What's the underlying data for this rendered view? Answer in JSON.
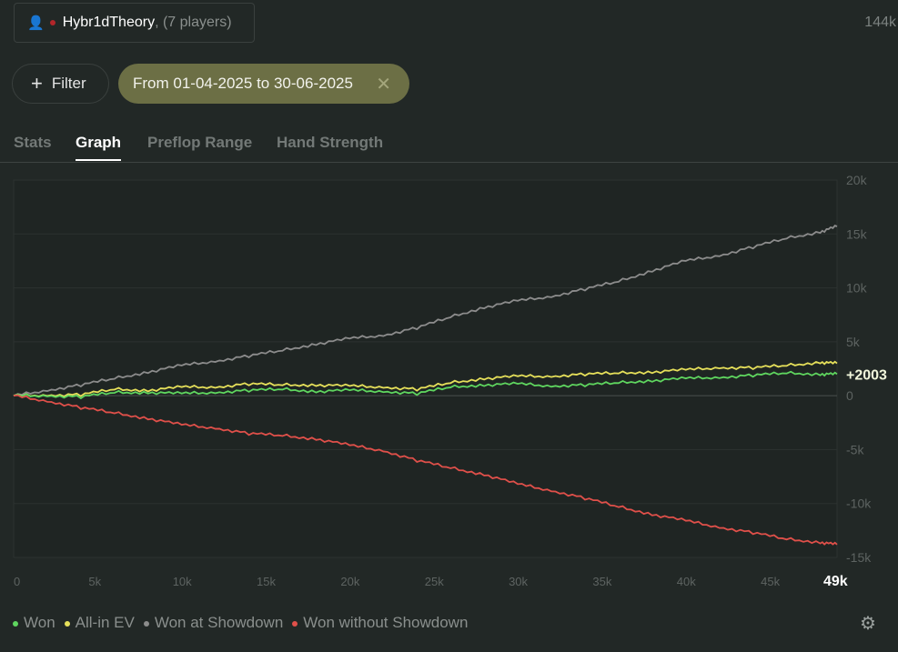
{
  "header": {
    "player_name": "Hybr1dTheory",
    "player_suffix": ", (7 players)",
    "total_hands": "144k"
  },
  "filters": {
    "add_label": "Filter",
    "date_range": "From 01-04-2025 to 30-06-2025"
  },
  "tabs": [
    {
      "label": "Stats"
    },
    {
      "label": "Graph"
    },
    {
      "label": "Preflop Range"
    },
    {
      "label": "Hand Strength"
    }
  ],
  "chart_data": {
    "type": "line",
    "xlim": [
      0,
      49000
    ],
    "ylim": [
      -15000,
      20000
    ],
    "x_ticks": [
      "0",
      "5k",
      "10k",
      "15k",
      "20k",
      "25k",
      "30k",
      "35k",
      "40k",
      "45k"
    ],
    "x_end_label": "49k",
    "y_ticks": [
      "20k",
      "15k",
      "10k",
      "5k",
      "0",
      "-5k",
      "-10k",
      "-15k"
    ],
    "end_value_label": "+2003",
    "x": [
      0,
      2000,
      4000,
      6000,
      8000,
      10000,
      12000,
      14000,
      16000,
      18000,
      20000,
      22000,
      24000,
      26000,
      28000,
      30000,
      32000,
      34000,
      36000,
      38000,
      40000,
      42000,
      44000,
      46000,
      48000,
      49000
    ],
    "series": [
      {
        "name": "Won at Showdown",
        "color": "#8c8c8c",
        "values": [
          0,
          500,
          1000,
          1600,
          2200,
          2800,
          3200,
          3700,
          4200,
          4800,
          5300,
          5600,
          6300,
          7300,
          8200,
          8800,
          9200,
          9900,
          10600,
          11600,
          12500,
          13000,
          13800,
          14600,
          15200,
          15700
        ]
      },
      {
        "name": "All-in EV",
        "color": "#e6e05a",
        "values": [
          0,
          50,
          100,
          600,
          500,
          800,
          800,
          1100,
          1000,
          1000,
          900,
          800,
          600,
          1200,
          1600,
          1800,
          1800,
          2000,
          2100,
          2200,
          2400,
          2600,
          2600,
          2800,
          3100,
          3000
        ]
      },
      {
        "name": "Won",
        "color": "#5fd65f",
        "values": [
          0,
          0,
          -100,
          300,
          300,
          200,
          300,
          500,
          600,
          400,
          500,
          400,
          200,
          800,
          1000,
          1100,
          900,
          1000,
          1200,
          1400,
          1600,
          1700,
          1900,
          2100,
          2000,
          2003
        ]
      },
      {
        "name": "Won without Showdown",
        "color": "#e0504a",
        "values": [
          0,
          -500,
          -1100,
          -1600,
          -2100,
          -2700,
          -3000,
          -3500,
          -3700,
          -4000,
          -4600,
          -5100,
          -6000,
          -6700,
          -7300,
          -8200,
          -8800,
          -9500,
          -10300,
          -11000,
          -11600,
          -12200,
          -12700,
          -13300,
          -13600,
          -13800
        ]
      }
    ]
  },
  "legend": [
    {
      "label": "Won",
      "color": "#5fd65f"
    },
    {
      "label": "All-in EV",
      "color": "#e6e05a"
    },
    {
      "label": "Won at Showdown",
      "color": "#8c8c8c"
    },
    {
      "label": "Won without Showdown",
      "color": "#e0504a"
    }
  ]
}
